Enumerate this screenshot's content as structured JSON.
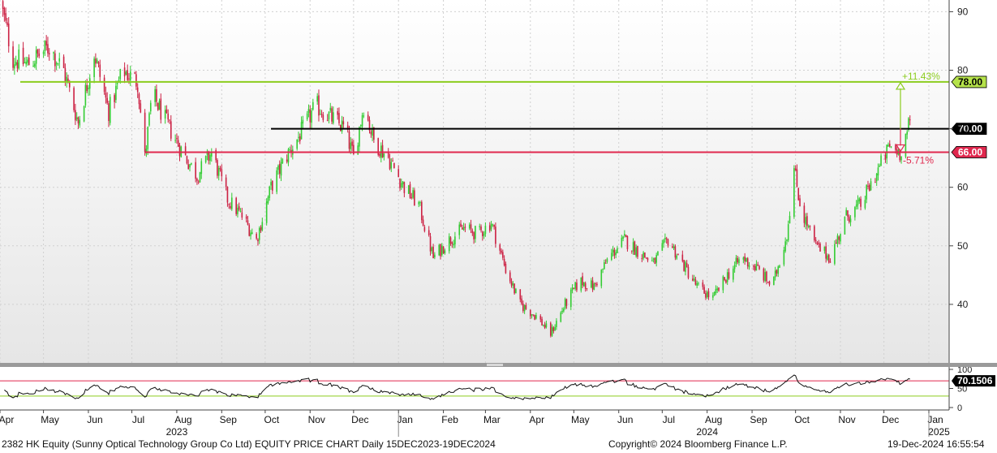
{
  "chart_data": {
    "type": "candlestick",
    "ylim": [
      30,
      92
    ],
    "y_ticks": [
      40,
      50,
      60,
      70,
      80,
      90
    ],
    "x_months": [
      "Apr",
      "May",
      "Jun",
      "Jul",
      "Aug",
      "Sep",
      "Oct",
      "Nov",
      "Dec",
      "Jan",
      "Feb",
      "Mar",
      "Apr",
      "May",
      "Jun",
      "Jul",
      "Aug",
      "Sep",
      "Oct",
      "Nov",
      "Dec",
      "Jan"
    ],
    "x_years": [
      "2023",
      "2024",
      "2025"
    ],
    "price_path": [
      [
        "2023-04-01",
        92
      ],
      [
        "2023-04-10",
        82
      ],
      [
        "2023-04-20",
        81
      ],
      [
        "2023-05-05",
        84
      ],
      [
        "2023-05-15",
        80
      ],
      [
        "2023-05-25",
        71
      ],
      [
        "2023-06-05",
        83
      ],
      [
        "2023-06-15",
        73
      ],
      [
        "2023-06-25",
        80
      ],
      [
        "2023-07-05",
        78
      ],
      [
        "2023-07-10",
        65
      ],
      [
        "2023-07-15",
        76
      ],
      [
        "2023-07-25",
        71
      ],
      [
        "2023-08-05",
        66
      ],
      [
        "2023-08-15",
        62
      ],
      [
        "2023-08-25",
        66
      ],
      [
        "2023-09-05",
        58
      ],
      [
        "2023-09-15",
        55
      ],
      [
        "2023-09-25",
        51
      ],
      [
        "2023-10-05",
        60
      ],
      [
        "2023-10-15",
        65
      ],
      [
        "2023-10-25",
        69
      ],
      [
        "2023-11-05",
        74
      ],
      [
        "2023-11-15",
        72
      ],
      [
        "2023-11-25",
        70
      ],
      [
        "2023-12-01",
        65
      ],
      [
        "2023-12-08",
        74
      ],
      [
        "2023-12-15",
        68
      ],
      [
        "2023-12-25",
        65
      ],
      [
        "2024-01-05",
        60
      ],
      [
        "2024-01-15",
        57
      ],
      [
        "2024-01-25",
        48
      ],
      [
        "2024-02-05",
        51
      ],
      [
        "2024-02-15",
        53
      ],
      [
        "2024-02-25",
        52
      ],
      [
        "2024-03-05",
        54
      ],
      [
        "2024-03-15",
        46
      ],
      [
        "2024-03-25",
        40
      ],
      [
        "2024-04-05",
        38
      ],
      [
        "2024-04-15",
        35
      ],
      [
        "2024-04-25",
        40
      ],
      [
        "2024-05-05",
        44
      ],
      [
        "2024-05-15",
        43
      ],
      [
        "2024-05-25",
        48
      ],
      [
        "2024-06-05",
        51
      ],
      [
        "2024-06-15",
        49
      ],
      [
        "2024-06-25",
        47
      ],
      [
        "2024-07-05",
        51
      ],
      [
        "2024-07-15",
        47
      ],
      [
        "2024-07-25",
        43
      ],
      [
        "2024-08-05",
        41
      ],
      [
        "2024-08-15",
        45
      ],
      [
        "2024-08-25",
        48
      ],
      [
        "2024-09-05",
        46
      ],
      [
        "2024-09-15",
        43
      ],
      [
        "2024-09-25",
        52
      ],
      [
        "2024-09-30",
        63
      ],
      [
        "2024-10-05",
        56
      ],
      [
        "2024-10-15",
        50
      ],
      [
        "2024-10-25",
        48
      ],
      [
        "2024-11-05",
        55
      ],
      [
        "2024-11-15",
        57
      ],
      [
        "2024-11-25",
        62
      ],
      [
        "2024-12-05",
        67
      ],
      [
        "2024-12-12",
        66
      ],
      [
        "2024-12-19",
        71
      ]
    ],
    "x_range": [
      "2023-04-01",
      "2025-01-15"
    ],
    "levels": [
      {
        "value": 78.0,
        "label": "78.00",
        "color": "#8ccc1f",
        "start": "2023-04-15"
      },
      {
        "value": 70.0,
        "label": "70.00",
        "color": "#000000",
        "start": "2023-10-05"
      },
      {
        "value": 66.0,
        "label": "66.00",
        "color": "#e0284e",
        "start": "2023-07-10"
      }
    ],
    "annotations": [
      {
        "text": "+11.43%",
        "color": "#8ccc1f"
      },
      {
        "text": "-5.71%",
        "color": "#e0284e"
      }
    ],
    "rsi": {
      "value_label": "70.1506",
      "ticks": [
        "100",
        "50",
        "0"
      ],
      "levels": [
        70,
        30
      ],
      "colors": {
        "upper": "#e0284e",
        "lower": "#8ccc1f"
      }
    },
    "colors": {
      "up": "#33cc33",
      "down": "#cc2244",
      "grid": "#d0d0d0"
    }
  },
  "footer": {
    "left": "2382 HK Equity (Sunny Optical Technology Group Co Ltd) EQUITY PRICE CHART  Daily 15DEC2023-19DEC2024",
    "center": "Copyright© 2024 Bloomberg Finance L.P.",
    "right": "19-Dec-2024 16:55:54"
  }
}
